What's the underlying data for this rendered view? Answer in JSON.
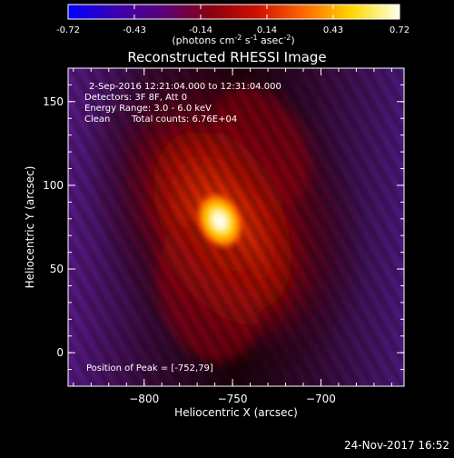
{
  "colorbar": {
    "tick_labels": [
      "-0.72",
      "-0.43",
      "-0.14",
      "0.14",
      "0.43",
      "0.72"
    ],
    "unit_label_parts": [
      "(photons cm",
      "-2",
      " s",
      "-1",
      " asec",
      "-2",
      ")"
    ],
    "colors": [
      "#0000ff",
      "#3b00b0",
      "#5a007a",
      "#8a0010",
      "#d01000",
      "#ff6a00",
      "#ffd800",
      "#ffffe8"
    ]
  },
  "plot": {
    "title": "Reconstructed RHESSI Image",
    "xlabel": "Heliocentric X (arcsec)",
    "ylabel": "Heliocentric Y (arcsec)",
    "x_ticks": [
      -800,
      -750,
      -700
    ],
    "x_tick_labels": [
      "−800",
      "−750",
      "−700"
    ],
    "y_ticks": [
      0,
      50,
      100,
      150
    ],
    "y_tick_labels": [
      "0",
      "50",
      "100",
      "150"
    ],
    "xlim": [
      -843,
      -653
    ],
    "ylim": [
      -20,
      170
    ],
    "info": {
      "time_range": "2-Sep-2016 12:21:04.000 to 12:31:04.000",
      "detectors": "Detectors: 3F 8F, Att 0",
      "energy": "Energy Range: 3.0 - 6.0 keV",
      "method": "Clean",
      "counts": "Total counts: 6.76E+04"
    },
    "peak_text": "Position of Peak = [-752,79]",
    "peak": [
      -752,
      79
    ]
  },
  "footer": {
    "date": "24-Nov-2017 16:52"
  }
}
